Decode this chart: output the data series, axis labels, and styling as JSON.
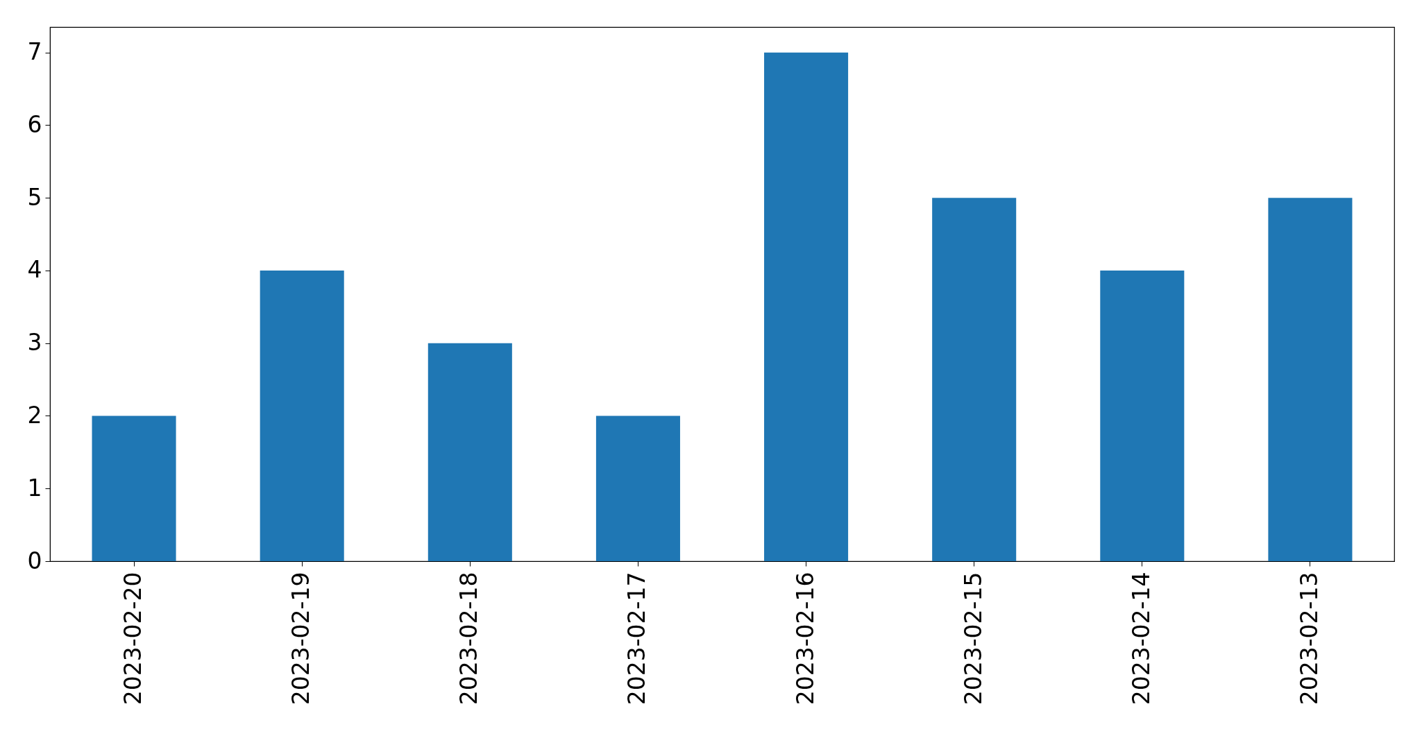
{
  "chart_data": {
    "type": "bar",
    "categories": [
      "2023-02-20",
      "2023-02-19",
      "2023-02-18",
      "2023-02-17",
      "2023-02-16",
      "2023-02-15",
      "2023-02-14",
      "2023-02-13"
    ],
    "values": [
      2,
      4,
      3,
      2,
      7,
      5,
      4,
      5
    ],
    "color": "#1f77b4",
    "ylim": [
      0,
      7.35
    ],
    "yticks": [
      0,
      1,
      2,
      3,
      4,
      5,
      6,
      7
    ],
    "grid": false
  }
}
